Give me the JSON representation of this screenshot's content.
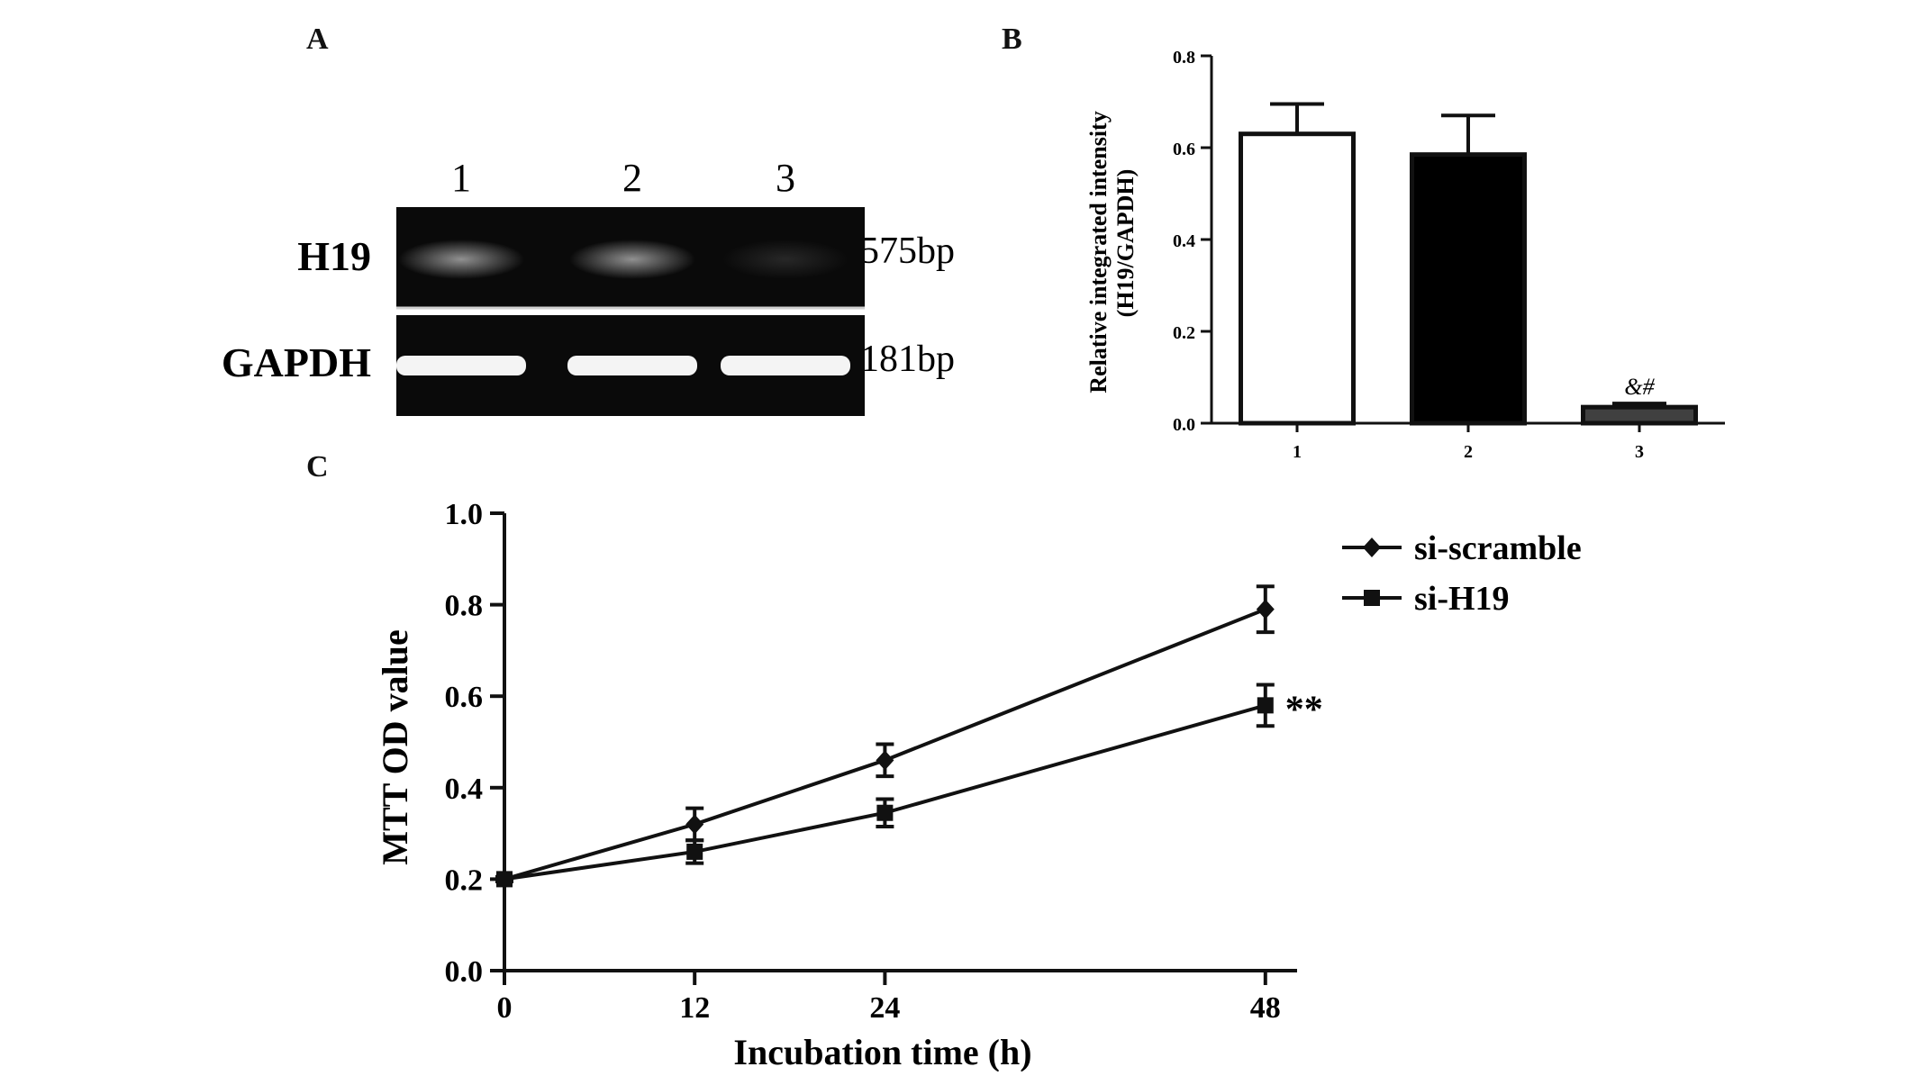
{
  "panels": {
    "a": "A",
    "b": "B",
    "c": "C"
  },
  "gel": {
    "lanes": [
      "1",
      "2",
      "3"
    ],
    "rows": [
      {
        "label": "H19",
        "size": "575bp",
        "intensity": [
          0.55,
          0.55,
          0.12
        ]
      },
      {
        "label": "GAPDH",
        "size": "181bp",
        "intensity": [
          1.0,
          1.0,
          1.0
        ]
      }
    ]
  },
  "chart_data": [
    {
      "id": "B",
      "type": "bar",
      "categories": [
        "1",
        "2",
        "3"
      ],
      "values": [
        0.63,
        0.585,
        0.035
      ],
      "errors": [
        0.065,
        0.085,
        0.008
      ],
      "bar_colors": [
        "#ffffff",
        "#000000",
        "#404040"
      ],
      "ylabel": "Relative integrated intensity",
      "ylabel2": "(H19/GAPDH)",
      "ylim": [
        0,
        0.8
      ],
      "yticks": [
        "0.0",
        "0.2",
        "0.4",
        "0.6",
        "0.8"
      ],
      "annotations": [
        {
          "category": "3",
          "text": "&#"
        }
      ]
    },
    {
      "id": "C",
      "type": "line",
      "x": [
        0,
        12,
        24,
        48
      ],
      "xticks": [
        "0",
        "12",
        "24",
        "48"
      ],
      "xlim": [
        0,
        50
      ],
      "ylim": [
        0,
        1.0
      ],
      "yticks": [
        "0.0",
        "0.2",
        "0.4",
        "0.6",
        "0.8",
        "1.0"
      ],
      "xlabel": "Incubation time (h)",
      "ylabel": "MTT OD value",
      "series": [
        {
          "name": "si-scramble",
          "values": [
            0.2,
            0.32,
            0.46,
            0.79
          ],
          "errors": [
            0.005,
            0.035,
            0.035,
            0.05
          ],
          "marker": "diamond"
        },
        {
          "name": "si-H19",
          "values": [
            0.2,
            0.26,
            0.345,
            0.58
          ],
          "errors": [
            0.005,
            0.025,
            0.03,
            0.045
          ],
          "marker": "square"
        }
      ],
      "legend_position": "top-right",
      "annotations": [
        {
          "x": 48,
          "series": "si-H19",
          "text": "**"
        }
      ]
    }
  ]
}
